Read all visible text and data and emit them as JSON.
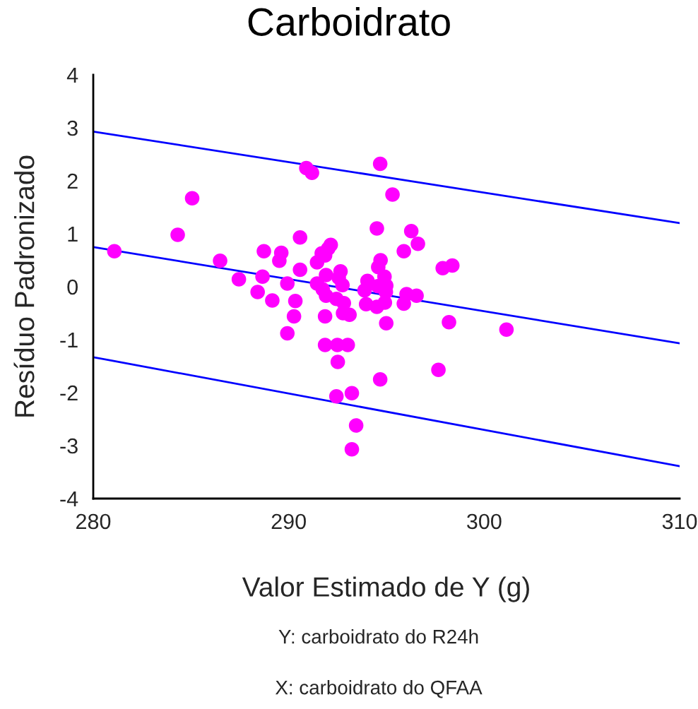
{
  "chart_data": {
    "type": "scatter",
    "title": "Carboidrato",
    "xlabel": "Valor Estimado de Y (g)",
    "ylabel": "Resíduo Padronizado",
    "annotations": [
      "Y: carboidrato do R24h",
      "X: carboidrato do QFAA"
    ],
    "xlim": [
      280,
      310
    ],
    "xticks": [
      280,
      290,
      300,
      310
    ],
    "ylim": [
      -4,
      4
    ],
    "yticks": [
      -4,
      -3,
      -2,
      -1,
      0,
      1,
      2,
      3,
      4
    ],
    "grid": false,
    "legend": false,
    "series": [
      {
        "marker": "circle",
        "color": "#ff00ff",
        "x": [
          281.08,
          285.06,
          284.32,
          286.49,
          288.73,
          287.45,
          288.66,
          288.41,
          290.9,
          291.19,
          294.68,
          295.31,
          294.51,
          296.27,
          296.61,
          295.89,
          290.58,
          292.15,
          292.02,
          291.69,
          291.86,
          289.62,
          289.52,
          291.45,
          294.7,
          294.58,
          290.58,
          292.65,
          291.91,
          292.56,
          294.9,
          297.88,
          298.37,
          289.93,
          291.45,
          294.03,
          292.75,
          294.56,
          294.99,
          291.74,
          293.88,
          294.97,
          291.91,
          296.03,
          296.54,
          289.16,
          290.34,
          292.44,
          292.82,
          293.96,
          294.92,
          294.51,
          295.89,
          292.78,
          293.11,
          291.86,
          290.27,
          294.99,
          298.2,
          301.14,
          289.93,
          291.86,
          292.49,
          293.02,
          292.51,
          297.66,
          294.68,
          292.44,
          293.23,
          293.45,
          293.23
        ],
        "values": [
          0.67,
          1.67,
          0.98,
          0.49,
          0.67,
          0.14,
          0.19,
          -0.1,
          2.24,
          2.15,
          2.32,
          1.74,
          1.1,
          1.05,
          0.81,
          0.67,
          0.93,
          0.79,
          0.72,
          0.63,
          0.59,
          0.64,
          0.49,
          0.46,
          0.5,
          0.37,
          0.32,
          0.29,
          0.22,
          0.17,
          0.19,
          0.35,
          0.4,
          0.06,
          0.06,
          0.11,
          0.03,
          0.01,
          0.02,
          -0.05,
          -0.07,
          -0.1,
          -0.17,
          -0.14,
          -0.17,
          -0.26,
          -0.27,
          -0.23,
          -0.31,
          -0.33,
          -0.3,
          -0.38,
          -0.32,
          -0.5,
          -0.53,
          -0.56,
          -0.56,
          -0.69,
          -0.67,
          -0.81,
          -0.88,
          -1.1,
          -1.1,
          -1.1,
          -1.42,
          -1.57,
          -1.75,
          -2.07,
          -2.01,
          -2.62,
          -3.07
        ]
      },
      {
        "type": "line",
        "color": "#0000ff",
        "x": [
          280,
          310
        ],
        "values": [
          2.93,
          1.2
        ]
      },
      {
        "type": "line",
        "color": "#0000ff",
        "x": [
          280,
          310
        ],
        "values": [
          0.75,
          -1.07
        ]
      },
      {
        "type": "line",
        "color": "#0000ff",
        "x": [
          280,
          310
        ],
        "values": [
          -1.33,
          -3.39
        ]
      }
    ]
  }
}
